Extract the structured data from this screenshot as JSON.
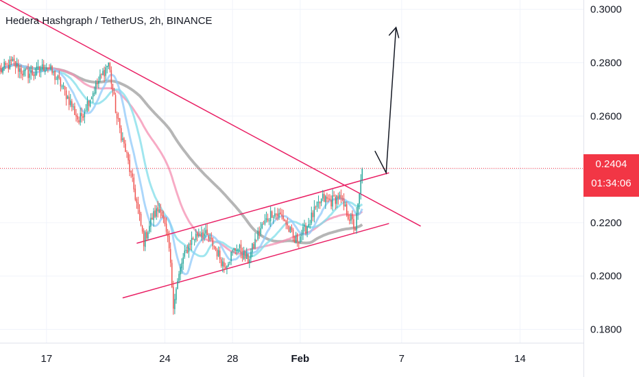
{
  "chart_data": {
    "type": "candlestick",
    "title": "Hedera Hashgraph / TetherUS, 2h, BINANCE",
    "symbol": "Hedera Hashgraph / TetherUS",
    "interval": "2h",
    "exchange": "BINANCE",
    "ylim": [
      0.175,
      0.3035
    ],
    "y_ticks": [
      "0.3000",
      "0.2800",
      "0.2600",
      "0.2400",
      "0.2200",
      "0.2000",
      "0.1800"
    ],
    "y_tick_values": [
      0.3,
      0.28,
      0.26,
      0.24,
      0.22,
      0.2,
      0.18
    ],
    "x_ticks": [
      "17",
      "24",
      "28",
      "Feb",
      "7",
      "14"
    ],
    "x_tick_dates": [
      "2021-01-17",
      "2021-01-24",
      "2021-01-28",
      "2021-02-01",
      "2021-02-07",
      "2021-02-14"
    ],
    "xlim": [
      "2021-01-14T06:00",
      "2021-02-17T18:00"
    ],
    "last_price": "0.2404",
    "countdown": "01:34:06",
    "grid": true,
    "colors": {
      "up": "#26a69a",
      "down": "#ef5350",
      "trendline": "#e91e63",
      "ma_gray": "#9e9e9e",
      "ma_pink": "#f48fb1",
      "ma_cyan": "#80deea",
      "ma_blue": "#90caf9",
      "arrow": "#131722",
      "price_box": "#f23645"
    },
    "anchor_closes": [
      {
        "t": "2021-01-14T06:00",
        "v": 0.277
      },
      {
        "t": "2021-01-15T00:00",
        "v": 0.28
      },
      {
        "t": "2021-01-15T16:00",
        "v": 0.276
      },
      {
        "t": "2021-01-16T06:00",
        "v": 0.276
      },
      {
        "t": "2021-01-17T00:00",
        "v": 0.279
      },
      {
        "t": "2021-01-17T20:00",
        "v": 0.272
      },
      {
        "t": "2021-01-18T10:00",
        "v": 0.265
      },
      {
        "t": "2021-01-18T22:00",
        "v": 0.258
      },
      {
        "t": "2021-01-19T12:00",
        "v": 0.266
      },
      {
        "t": "2021-01-20T04:00",
        "v": 0.274
      },
      {
        "t": "2021-01-20T16:00",
        "v": 0.28
      },
      {
        "t": "2021-01-21T04:00",
        "v": 0.259
      },
      {
        "t": "2021-01-21T18:00",
        "v": 0.245
      },
      {
        "t": "2021-01-22T06:00",
        "v": 0.23
      },
      {
        "t": "2021-01-22T18:00",
        "v": 0.213
      },
      {
        "t": "2021-01-23T06:00",
        "v": 0.222
      },
      {
        "t": "2021-01-23T18:00",
        "v": 0.226
      },
      {
        "t": "2021-01-24T06:00",
        "v": 0.21
      },
      {
        "t": "2021-01-24T12:00",
        "v": 0.19
      },
      {
        "t": "2021-01-25T00:00",
        "v": 0.205
      },
      {
        "t": "2021-01-25T12:00",
        "v": 0.213
      },
      {
        "t": "2021-01-26T04:00",
        "v": 0.217
      },
      {
        "t": "2021-01-26T20:00",
        "v": 0.212
      },
      {
        "t": "2021-01-27T12:00",
        "v": 0.204
      },
      {
        "t": "2021-01-28T06:00",
        "v": 0.211
      },
      {
        "t": "2021-01-28T22:00",
        "v": 0.206
      },
      {
        "t": "2021-01-29T14:00",
        "v": 0.217
      },
      {
        "t": "2021-01-30T08:00",
        "v": 0.224
      },
      {
        "t": "2021-01-31T00:00",
        "v": 0.222
      },
      {
        "t": "2021-01-31T16:00",
        "v": 0.213
      },
      {
        "t": "2021-02-01T06:00",
        "v": 0.217
      },
      {
        "t": "2021-02-01T20:00",
        "v": 0.224
      },
      {
        "t": "2021-02-02T08:00",
        "v": 0.229
      },
      {
        "t": "2021-02-02T20:00",
        "v": 0.228
      },
      {
        "t": "2021-02-03T06:00",
        "v": 0.23
      },
      {
        "t": "2021-02-03T14:00",
        "v": 0.226
      },
      {
        "t": "2021-02-03T22:00",
        "v": 0.222
      },
      {
        "t": "2021-02-04T06:00",
        "v": 0.218
      },
      {
        "t": "2021-02-04T12:00",
        "v": 0.23
      },
      {
        "t": "2021-02-04T16:00",
        "v": 0.2404
      }
    ]
  }
}
